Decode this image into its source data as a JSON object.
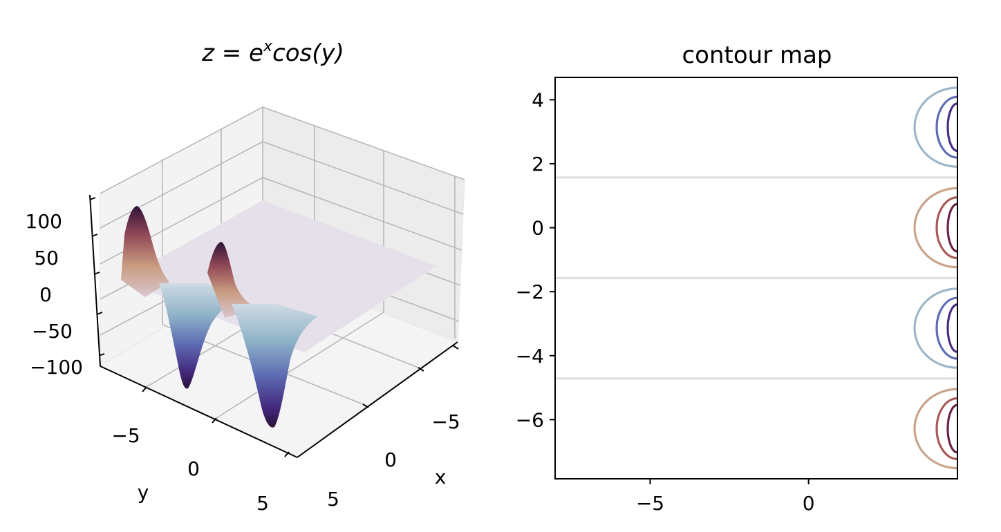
{
  "chart_data": [
    {
      "type": "surface",
      "title_prefix": "z = e",
      "title_sup": "x",
      "title_suffix": "cos(y)",
      "xlabel": "x",
      "ylabel": "y",
      "zlabel": "",
      "x_ticks": [
        "−5",
        "0",
        "5"
      ],
      "y_ticks": [
        "−5",
        "0",
        "5"
      ],
      "z_ticks": [
        "100",
        "50",
        "0",
        "−50",
        "−100"
      ],
      "zlim": [
        -120,
        120
      ],
      "colormap": "twilight_shifted",
      "surface_peaks": [
        {
          "y": -6.283,
          "z": 109.9,
          "sign": "positive"
        },
        {
          "y": -3.142,
          "z": -109.9,
          "sign": "negative"
        },
        {
          "y": 0.0,
          "z": 109.9,
          "sign": "positive"
        },
        {
          "y": 3.142,
          "z": -109.9,
          "sign": "negative"
        }
      ]
    },
    {
      "type": "contour",
      "title": "contour map",
      "xlim": [
        -8,
        4.7
      ],
      "ylim": [
        -7.85,
        4.7
      ],
      "x_ticks": [
        "−5",
        "0"
      ],
      "y_ticks": [
        "4",
        "2",
        "0",
        "−2",
        "−4",
        "−6"
      ],
      "zero_level_lines_y": [
        1.571,
        -1.571,
        -4.712
      ],
      "contour_centers_y": [
        3.142,
        0.0,
        -3.142,
        -6.283
      ],
      "colors": {
        "zero": "#e4dce4",
        "pos1": "#c9a48c",
        "pos2": "#a95a55",
        "pos3": "#6b2448",
        "neg1": "#9db7c9",
        "neg2": "#5f6cb4",
        "neg3": "#4a2e86"
      }
    }
  ]
}
